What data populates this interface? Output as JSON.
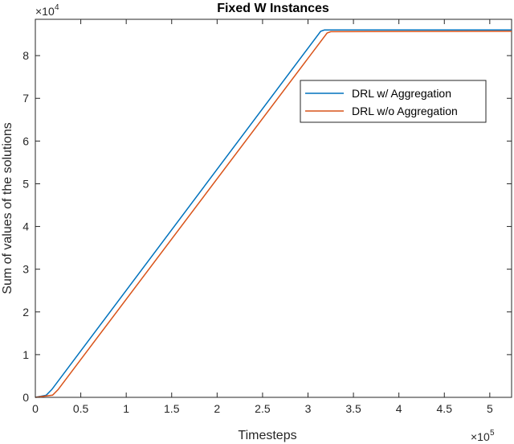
{
  "chart_data": {
    "type": "line",
    "title": "Fixed W Instances",
    "xlabel": "Timesteps",
    "ylabel": "Sum of values of the solutions",
    "x_multiplier": {
      "base": "×10",
      "exp": "5"
    },
    "y_multiplier": {
      "base": "×10",
      "exp": "4"
    },
    "xlim": [
      0,
      524000
    ],
    "ylim": [
      0,
      88500
    ],
    "x_ticks": [
      0,
      50000,
      100000,
      150000,
      200000,
      250000,
      300000,
      350000,
      400000,
      450000,
      500000
    ],
    "x_tick_labels": [
      "0",
      "0.5",
      "1",
      "1.5",
      "2",
      "2.5",
      "3",
      "3.5",
      "4",
      "4.5",
      "5"
    ],
    "y_ticks": [
      0,
      10000,
      20000,
      30000,
      40000,
      50000,
      60000,
      70000,
      80000
    ],
    "y_tick_labels": [
      "0",
      "1",
      "2",
      "3",
      "4",
      "5",
      "6",
      "7",
      "8"
    ],
    "grid": false,
    "legend_position": "upper-right",
    "series": [
      {
        "name": "DRL w/ Aggregation",
        "color": "#0072BD",
        "x": [
          0,
          12000,
          18000,
          314000,
          318000,
          524000
        ],
        "y": [
          0,
          500,
          1800,
          85700,
          86000,
          86000
        ]
      },
      {
        "name": "DRL w/o Aggregation",
        "color": "#D95319",
        "x": [
          0,
          19000,
          25000,
          321000,
          325000,
          524000
        ],
        "y": [
          0,
          500,
          1800,
          85300,
          85600,
          85700
        ]
      }
    ]
  }
}
